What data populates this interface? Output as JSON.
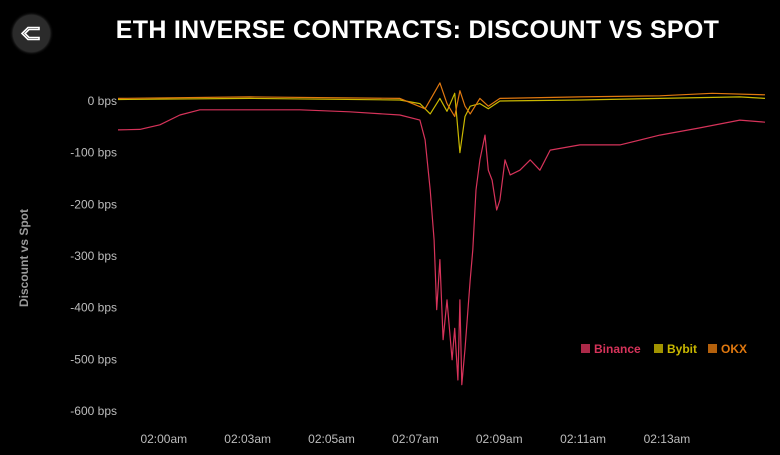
{
  "title": "ETH INVERSE CONTRACTS: DISCOUNT VS SPOT",
  "logo": "sigma-diamond-logo",
  "chart_data": {
    "type": "line",
    "title": "ETH INVERSE CONTRACTS: DISCOUNT VS SPOT",
    "xlabel": "",
    "ylabel": "Discount vs Spot",
    "ylim": [
      -600,
      0
    ],
    "xlim": [
      "01:59:39",
      "02:16:22"
    ],
    "y_ticks": [
      {
        "value": 0,
        "label": "0 bps"
      },
      {
        "value": -100,
        "label": "-100 bps"
      },
      {
        "value": -200,
        "label": "-200 bps"
      },
      {
        "value": -300,
        "label": "-300 bps"
      },
      {
        "value": -400,
        "label": "-400 bps"
      },
      {
        "value": -500,
        "label": "-500 bps"
      },
      {
        "value": -600,
        "label": "-600 bps"
      }
    ],
    "x_ticks": [
      {
        "value": "02:00:50",
        "label": "02:00am"
      },
      {
        "value": "02:03:00",
        "label": "02:03am"
      },
      {
        "value": "02:05:10",
        "label": "02:05am"
      },
      {
        "value": "02:07:20",
        "label": "02:07am"
      },
      {
        "value": "02:09:30",
        "label": "02:09am"
      },
      {
        "value": "02:11:40",
        "label": "02:11am"
      },
      {
        "value": "02:13:50",
        "label": "02:13am"
      }
    ],
    "grid": false,
    "legend": "bottom-right",
    "series": [
      {
        "name": "Binance",
        "color": "#d6335a",
        "points": [
          [
            "01:59:39",
            -56
          ],
          [
            "02:00:13",
            -55
          ],
          [
            "02:00:44",
            -46
          ],
          [
            "02:01:15",
            -27
          ],
          [
            "02:01:46",
            -17
          ],
          [
            "02:03:03",
            -17
          ],
          [
            "02:04:21",
            -17
          ],
          [
            "02:05:38",
            -21
          ],
          [
            "02:06:56",
            -27
          ],
          [
            "02:07:27",
            -37
          ],
          [
            "02:07:35",
            -75
          ],
          [
            "02:07:43",
            -172
          ],
          [
            "02:07:49",
            -269
          ],
          [
            "02:07:53",
            -404
          ],
          [
            "02:07:58",
            -307
          ],
          [
            "02:08:03",
            -462
          ],
          [
            "02:08:09",
            -385
          ],
          [
            "02:08:17",
            -501
          ],
          [
            "02:08:21",
            -440
          ],
          [
            "02:08:26",
            -540
          ],
          [
            "02:08:29",
            -385
          ],
          [
            "02:08:32",
            -549
          ],
          [
            "02:08:37",
            -480
          ],
          [
            "02:08:45",
            -346
          ],
          [
            "02:08:49",
            -288
          ],
          [
            "02:08:54",
            -172
          ],
          [
            "02:09:00",
            -114
          ],
          [
            "02:09:08",
            -66
          ],
          [
            "02:09:13",
            -134
          ],
          [
            "02:09:19",
            -153
          ],
          [
            "02:09:26",
            -211
          ],
          [
            "02:09:31",
            -192
          ],
          [
            "02:09:39",
            -114
          ],
          [
            "02:09:47",
            -143
          ],
          [
            "02:10:02",
            -134
          ],
          [
            "02:10:18",
            -114
          ],
          [
            "02:10:33",
            -134
          ],
          [
            "02:10:49",
            -95
          ],
          [
            "02:11:35",
            -85
          ],
          [
            "02:12:37",
            -85
          ],
          [
            "02:13:39",
            -66
          ],
          [
            "02:14:41",
            -52
          ],
          [
            "02:15:43",
            -37
          ],
          [
            "02:16:22",
            -41
          ]
        ]
      },
      {
        "name": "Bybit",
        "color": "#c9b800",
        "points": [
          [
            "01:59:39",
            3
          ],
          [
            "02:03:03",
            5
          ],
          [
            "02:06:56",
            2
          ],
          [
            "02:07:27",
            -5
          ],
          [
            "02:07:43",
            -25
          ],
          [
            "02:07:58",
            5
          ],
          [
            "02:08:09",
            -20
          ],
          [
            "02:08:21",
            15
          ],
          [
            "02:08:29",
            -100
          ],
          [
            "02:08:37",
            -30
          ],
          [
            "02:08:45",
            -10
          ],
          [
            "02:09:00",
            -5
          ],
          [
            "02:09:13",
            -15
          ],
          [
            "02:09:31",
            0
          ],
          [
            "02:11:35",
            2
          ],
          [
            "02:13:39",
            5
          ],
          [
            "02:15:43",
            8
          ],
          [
            "02:16:22",
            5
          ]
        ]
      },
      {
        "name": "OKX",
        "color": "#e0780f",
        "points": [
          [
            "01:59:39",
            5
          ],
          [
            "02:03:03",
            8
          ],
          [
            "02:06:56",
            5
          ],
          [
            "02:07:35",
            -15
          ],
          [
            "02:07:58",
            35
          ],
          [
            "02:08:09",
            -5
          ],
          [
            "02:08:21",
            -30
          ],
          [
            "02:08:29",
            20
          ],
          [
            "02:08:37",
            -10
          ],
          [
            "02:08:45",
            -25
          ],
          [
            "02:09:00",
            5
          ],
          [
            "02:09:13",
            -10
          ],
          [
            "02:09:31",
            5
          ],
          [
            "02:11:35",
            8
          ],
          [
            "02:13:39",
            10
          ],
          [
            "02:15:00",
            15
          ],
          [
            "02:16:22",
            12
          ]
        ]
      }
    ]
  }
}
